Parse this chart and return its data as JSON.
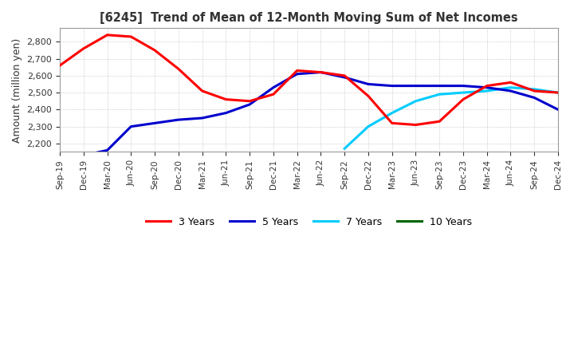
{
  "title": "[6245]  Trend of Mean of 12-Month Moving Sum of Net Incomes",
  "ylabel": "Amount (million yen)",
  "background_color": "#ffffff",
  "grid_color": "#b0b0b0",
  "legend_labels": [
    "3 Years",
    "5 Years",
    "7 Years",
    "10 Years"
  ],
  "legend_colors": [
    "#ff0000",
    "#0000cd",
    "#00ccff",
    "#006400"
  ],
  "ylim": [
    2150,
    2880
  ],
  "yticks": [
    2200,
    2300,
    2400,
    2500,
    2600,
    2700,
    2800
  ],
  "x_labels": [
    "Sep-19",
    "Dec-19",
    "Mar-20",
    "Jun-20",
    "Sep-20",
    "Dec-20",
    "Mar-21",
    "Jun-21",
    "Sep-21",
    "Dec-21",
    "Mar-22",
    "Jun-22",
    "Sep-22",
    "Dec-22",
    "Mar-23",
    "Jun-23",
    "Sep-23",
    "Dec-23",
    "Mar-24",
    "Jun-24",
    "Sep-24",
    "Dec-24"
  ],
  "series_3y": [
    2660,
    2760,
    2840,
    2830,
    2750,
    2640,
    2510,
    2460,
    2450,
    2490,
    2630,
    2620,
    2600,
    2480,
    2320,
    2310,
    2330,
    2460,
    2540,
    2560,
    2510,
    2500
  ],
  "series_5y": [
    null,
    2130,
    2160,
    2300,
    2320,
    2340,
    2350,
    2380,
    2430,
    2530,
    2610,
    2620,
    2590,
    2550,
    2540,
    2540,
    2540,
    2540,
    2530,
    2510,
    2470,
    2400
  ],
  "series_7y": [
    null,
    null,
    null,
    null,
    null,
    null,
    null,
    null,
    null,
    null,
    null,
    null,
    2170,
    2300,
    2380,
    2450,
    2490,
    2500,
    2510,
    2530,
    2520,
    2500
  ],
  "series_10y": [
    null,
    null,
    null,
    null,
    null,
    null,
    null,
    null,
    null,
    null,
    null,
    null,
    null,
    null,
    null,
    null,
    null,
    null,
    null,
    null,
    null,
    null
  ]
}
